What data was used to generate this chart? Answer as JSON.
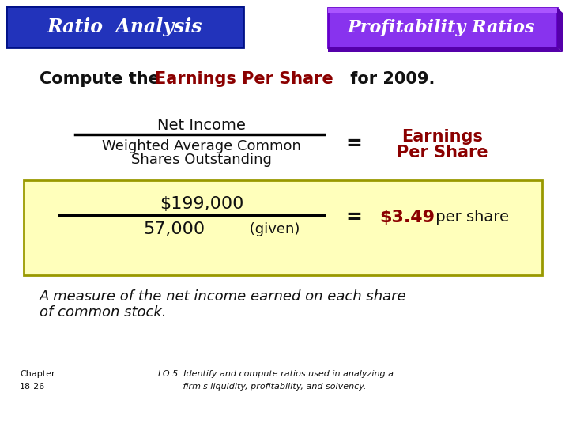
{
  "title_left": "Ratio  Analysis",
  "title_right": "Profitability Ratios",
  "title_left_bg": "#2233bb",
  "title_right_bg": "#8833ee",
  "title_text_color": "#ffffff",
  "heading_plain1": "Compute the ",
  "heading_highlight": "Earnings Per Share",
  "heading_plain2": " for 2009.",
  "heading_color": "#111111",
  "heading_highlight_color": "#8b0000",
  "formula_numerator": "Net Income",
  "formula_denom1": "Weighted Average Common",
  "formula_denom2": "Shares Outstanding",
  "formula_result1": "Earnings",
  "formula_result2": "Per Share",
  "formula_result_color": "#8b0000",
  "example_numerator": "$199,000",
  "example_denominator": "57,000",
  "example_given": " (given)",
  "example_result_bold": "$3.49",
  "example_result_plain": " per share",
  "example_result_color": "#8b0000",
  "example_box_color": "#ffffbb",
  "example_box_border": "#999900",
  "bottom_text1": "A measure of the net income earned on each share",
  "bottom_text2": "of common stock.",
  "chapter_line1": "Chapter",
  "chapter_line2": "18-26",
  "lo_text1": "LO 5  Identify and compute ratios used in analyzing a",
  "lo_text2": "         firm's liquidity, profitability, and solvency.",
  "bg_color": "#ffffff",
  "text_color": "#111111"
}
